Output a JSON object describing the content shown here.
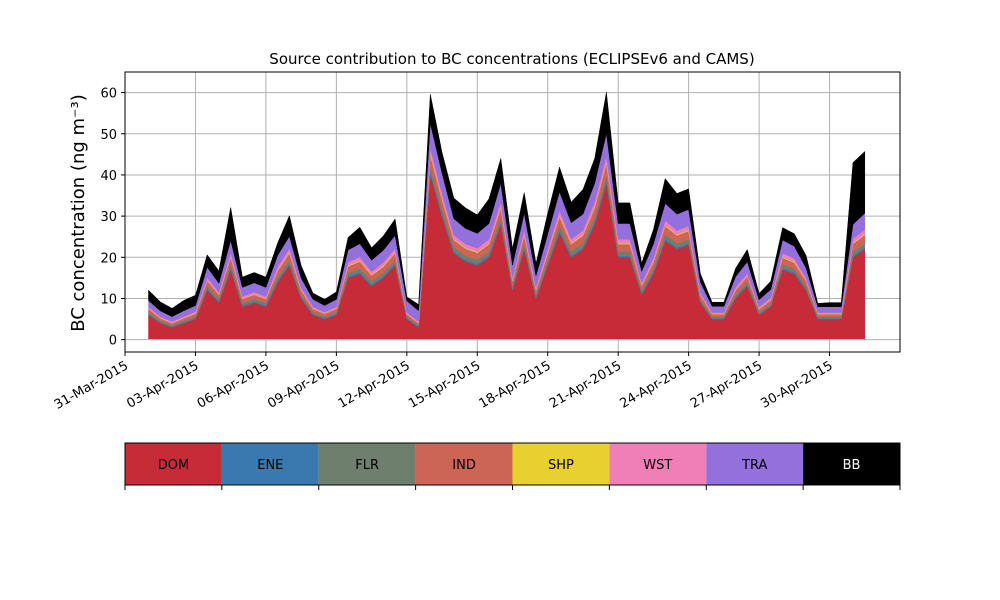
{
  "chart_data": {
    "type": "area",
    "stacked": true,
    "title": "Source contribution to BC concentrations (ECLIPSEv6 and CAMS)",
    "ylabel": "BC concentration (ng m⁻³)",
    "xlabel": "",
    "ylim": [
      -3,
      65
    ],
    "xlim": [
      "2015-03-31",
      "2015-05-03"
    ],
    "grid": true,
    "y_ticks": [
      0,
      10,
      20,
      30,
      40,
      50,
      60
    ],
    "x_ticks": [
      "31-Mar-2015",
      "03-Apr-2015",
      "06-Apr-2015",
      "09-Apr-2015",
      "12-Apr-2015",
      "15-Apr-2015",
      "18-Apr-2015",
      "21-Apr-2015",
      "24-Apr-2015",
      "27-Apr-2015",
      "30-Apr-2015"
    ],
    "x": [
      "2015-04-01",
      "2015-04-01 12:00",
      "2015-04-02",
      "2015-04-02 12:00",
      "2015-04-03",
      "2015-04-03 12:00",
      "2015-04-04",
      "2015-04-04 12:00",
      "2015-04-05",
      "2015-04-05 12:00",
      "2015-04-06",
      "2015-04-06 12:00",
      "2015-04-07",
      "2015-04-07 12:00",
      "2015-04-08",
      "2015-04-08 12:00",
      "2015-04-09",
      "2015-04-09 12:00",
      "2015-04-10",
      "2015-04-10 12:00",
      "2015-04-11",
      "2015-04-11 12:00",
      "2015-04-12",
      "2015-04-12 12:00",
      "2015-04-13",
      "2015-04-13 12:00",
      "2015-04-14",
      "2015-04-14 12:00",
      "2015-04-15",
      "2015-04-15 12:00",
      "2015-04-16",
      "2015-04-16 12:00",
      "2015-04-17",
      "2015-04-17 12:00",
      "2015-04-18",
      "2015-04-18 12:00",
      "2015-04-19",
      "2015-04-19 12:00",
      "2015-04-20",
      "2015-04-20 12:00",
      "2015-04-21",
      "2015-04-21 12:00",
      "2015-04-22",
      "2015-04-22 12:00",
      "2015-04-23",
      "2015-04-23 12:00",
      "2015-04-24",
      "2015-04-24 12:00",
      "2015-04-25",
      "2015-04-25 12:00",
      "2015-04-26",
      "2015-04-26 12:00",
      "2015-04-27",
      "2015-04-27 12:00",
      "2015-04-28",
      "2015-04-28 12:00",
      "2015-04-29",
      "2015-04-29 12:00",
      "2015-04-30",
      "2015-04-30 12:00",
      "2015-05-01",
      "2015-05-01 12:00"
    ],
    "series": [
      {
        "name": "DOM",
        "color": "#c62b37",
        "values": [
          6,
          4,
          3,
          4,
          5,
          12,
          9,
          17,
          8,
          9,
          8,
          14,
          18,
          10,
          6,
          5,
          6,
          15,
          16,
          13,
          15,
          18,
          5,
          3,
          40,
          30,
          21,
          19,
          18,
          20,
          28,
          12,
          22,
          10,
          18,
          26,
          20,
          22,
          28,
          38,
          20,
          20,
          11,
          16,
          24,
          22,
          23,
          9,
          5,
          5,
          10,
          13,
          6,
          8,
          17,
          16,
          12,
          5,
          5,
          5,
          20,
          22
        ]
      },
      {
        "name": "ENE",
        "color": "#3a78b0",
        "values": [
          0.2,
          0.2,
          0.2,
          0.2,
          0.2,
          0.3,
          0.3,
          0.4,
          0.3,
          0.3,
          0.3,
          0.4,
          0.4,
          0.3,
          0.2,
          0.2,
          0.2,
          0.4,
          0.4,
          0.4,
          0.4,
          0.4,
          0.2,
          0.2,
          0.6,
          0.5,
          0.4,
          0.4,
          0.4,
          0.4,
          0.5,
          0.3,
          0.4,
          0.3,
          0.4,
          0.5,
          0.4,
          0.4,
          0.5,
          0.6,
          0.4,
          0.4,
          0.3,
          0.4,
          0.5,
          0.4,
          0.4,
          0.2,
          0.2,
          0.2,
          0.3,
          0.3,
          0.2,
          0.2,
          0.4,
          0.4,
          0.3,
          0.2,
          0.2,
          0.2,
          0.4,
          0.4
        ]
      },
      {
        "name": "FLR",
        "color": "#6e7f6e",
        "values": [
          0.5,
          0.4,
          0.3,
          0.4,
          0.4,
          0.7,
          0.6,
          0.9,
          0.6,
          0.6,
          0.6,
          0.8,
          0.9,
          0.6,
          0.5,
          0.4,
          0.5,
          0.8,
          0.9,
          0.8,
          0.8,
          0.9,
          0.4,
          0.3,
          1.4,
          1.2,
          1,
          1,
          1,
          1,
          1.2,
          0.8,
          1,
          0.7,
          0.9,
          1.2,
          1,
          1,
          1.2,
          1.4,
          1,
          1,
          0.7,
          0.9,
          1.1,
          1,
          1,
          0.6,
          0.4,
          0.4,
          0.6,
          0.7,
          0.5,
          0.5,
          0.9,
          0.8,
          0.7,
          0.4,
          0.4,
          0.4,
          1,
          1
        ]
      },
      {
        "name": "IND",
        "color": "#cc6555",
        "values": [
          0.8,
          0.6,
          0.5,
          0.6,
          0.7,
          1.3,
          1,
          1.7,
          1,
          1,
          1,
          1.5,
          1.7,
          1.1,
          0.8,
          0.7,
          0.8,
          1.6,
          1.7,
          1.4,
          1.5,
          1.7,
          0.6,
          0.5,
          2.8,
          2.3,
          1.8,
          1.7,
          1.7,
          1.8,
          2.3,
          1.2,
          1.9,
          1,
          1.6,
          2.2,
          1.8,
          1.9,
          2.3,
          2.8,
          1.8,
          1.8,
          1.1,
          1.5,
          2,
          1.9,
          2,
          1,
          0.6,
          0.6,
          1.1,
          1.3,
          0.7,
          0.9,
          1.6,
          1.5,
          1.2,
          0.6,
          0.6,
          0.6,
          1.9,
          2
        ]
      },
      {
        "name": "SHP",
        "color": "#e8d030",
        "values": [
          0.1,
          0.1,
          0.1,
          0.1,
          0.1,
          0.1,
          0.1,
          0.2,
          0.1,
          0.1,
          0.1,
          0.2,
          0.2,
          0.1,
          0.1,
          0.1,
          0.1,
          0.2,
          0.2,
          0.2,
          0.2,
          0.2,
          0.1,
          0.1,
          0.3,
          0.3,
          0.2,
          0.2,
          0.2,
          0.2,
          0.3,
          0.1,
          0.2,
          0.1,
          0.2,
          0.3,
          0.2,
          0.2,
          0.3,
          0.3,
          0.2,
          0.2,
          0.1,
          0.2,
          0.2,
          0.2,
          0.2,
          0.1,
          0.1,
          0.1,
          0.1,
          0.1,
          0.1,
          0.1,
          0.2,
          0.2,
          0.1,
          0.1,
          0.1,
          0.1,
          0.2,
          0.2
        ]
      },
      {
        "name": "WST",
        "color": "#f07fb8",
        "values": [
          0.4,
          0.3,
          0.3,
          0.3,
          0.4,
          0.7,
          0.5,
          0.9,
          0.5,
          0.5,
          0.5,
          0.8,
          0.9,
          0.6,
          0.4,
          0.3,
          0.4,
          0.8,
          0.9,
          0.7,
          0.8,
          0.9,
          0.3,
          0.3,
          1.5,
          1.2,
          1,
          0.9,
          0.9,
          1,
          1.2,
          0.7,
          1,
          0.6,
          0.9,
          1.2,
          1,
          1,
          1.2,
          1.5,
          1,
          1,
          0.6,
          0.8,
          1.1,
          1,
          1,
          0.5,
          0.3,
          0.3,
          0.6,
          0.7,
          0.4,
          0.5,
          0.9,
          0.8,
          0.6,
          0.3,
          0.3,
          0.3,
          1,
          1.1
        ]
      },
      {
        "name": "TRA",
        "color": "#9370db",
        "values": [
          1.5,
          1.4,
          1.2,
          1.4,
          1.5,
          2.5,
          2.2,
          3,
          2.2,
          2.3,
          2.2,
          2.8,
          3,
          2.3,
          1.8,
          1.6,
          1.8,
          3,
          3.2,
          2.8,
          3,
          3.2,
          2.8,
          2.6,
          6,
          5,
          4,
          3.8,
          3.6,
          3.8,
          4.5,
          3,
          4.2,
          2.8,
          3.6,
          4.5,
          4,
          4,
          4.5,
          5.5,
          3.8,
          3.8,
          2.8,
          3.4,
          4.2,
          4,
          4,
          2.6,
          1.5,
          1.5,
          2.6,
          2.8,
          1.8,
          2,
          3.2,
          3,
          2.5,
          1.4,
          1.4,
          1.4,
          3.5,
          4
        ]
      },
      {
        "name": "BB",
        "color": "#000000",
        "values": [
          2.5,
          2.2,
          2,
          2.5,
          2.5,
          3,
          3,
          8,
          2.5,
          2.5,
          2.5,
          3,
          5,
          3,
          1.5,
          1.5,
          1.8,
          3,
          4,
          3,
          3.5,
          4,
          1,
          1.5,
          7,
          5,
          5,
          5,
          4.5,
          6,
          6,
          4,
          5,
          3,
          5,
          6,
          5,
          6,
          6,
          10,
          5,
          5,
          2,
          3.5,
          6,
          5,
          5,
          2,
          1,
          1,
          2,
          3,
          1.5,
          2,
          3,
          3,
          3,
          0.8,
          1,
          1,
          15,
          15
        ]
      }
    ],
    "legend": {
      "position": "bottom",
      "items": [
        {
          "label": "DOM",
          "color": "#c62b37",
          "text_color": "#000000"
        },
        {
          "label": "ENE",
          "color": "#3a78b0",
          "text_color": "#000000"
        },
        {
          "label": "FLR",
          "color": "#6e7f6e",
          "text_color": "#000000"
        },
        {
          "label": "IND",
          "color": "#cc6555",
          "text_color": "#000000"
        },
        {
          "label": "SHP",
          "color": "#e8d030",
          "text_color": "#000000"
        },
        {
          "label": "WST",
          "color": "#f07fb8",
          "text_color": "#000000"
        },
        {
          "label": "TRA",
          "color": "#9370db",
          "text_color": "#000000"
        },
        {
          "label": "BB",
          "color": "#000000",
          "text_color": "#ffffff"
        }
      ]
    }
  }
}
